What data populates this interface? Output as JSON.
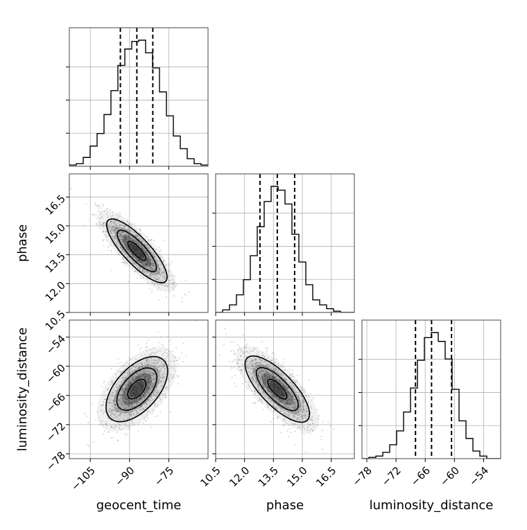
{
  "chart_data": {
    "type": "corner",
    "parameters": [
      {
        "name": "geocent_time",
        "axis_label": "geocent_time",
        "range": [
          -113,
          -60
        ],
        "ticks": [
          -105,
          -90,
          -75
        ],
        "tick_labels": [
          "−105",
          "−90",
          "−75"
        ],
        "quantiles": [
          -93.5,
          -87.2,
          -81.1
        ],
        "histogram": {
          "bins": [
            -113.0,
            -110.35,
            -107.7,
            -105.05,
            -102.4,
            -99.75,
            -97.1,
            -94.45,
            -91.8,
            -89.15,
            -86.5,
            -83.85,
            -81.2,
            -78.55,
            -75.9,
            -73.25,
            -70.6,
            -67.95,
            -65.3,
            -62.65,
            -60.0
          ],
          "heights": [
            0.01,
            0.02,
            0.07,
            0.16,
            0.26,
            0.41,
            0.6,
            0.8,
            0.93,
            0.99,
            1.0,
            0.9,
            0.78,
            0.59,
            0.4,
            0.24,
            0.14,
            0.06,
            0.02,
            0.01
          ]
        }
      },
      {
        "name": "phase",
        "axis_label": "phase",
        "range": [
          10.5,
          17.7
        ],
        "ticks": [
          10.5,
          12.0,
          13.5,
          15.0,
          16.5
        ],
        "tick_labels": [
          "10.5",
          "12.0",
          "13.5",
          "15.0",
          "16.5"
        ],
        "quantiles": [
          12.8,
          13.7,
          14.6
        ],
        "histogram": {
          "bins": [
            10.5,
            10.86,
            11.22,
            11.58,
            11.94,
            12.3,
            12.66,
            13.02,
            13.38,
            13.74,
            14.1,
            14.46,
            14.82,
            15.18,
            15.54,
            15.9,
            16.26,
            16.62,
            16.98,
            17.34,
            17.7
          ],
          "heights": [
            0.0,
            0.02,
            0.06,
            0.14,
            0.26,
            0.45,
            0.68,
            0.88,
            1.0,
            0.97,
            0.86,
            0.62,
            0.4,
            0.22,
            0.1,
            0.06,
            0.03,
            0.01,
            0.0,
            0.0
          ]
        }
      },
      {
        "name": "luminosity_distance",
        "axis_label": "luminosity_distance",
        "range": [
          -79,
          -50.5
        ],
        "ticks": [
          -78,
          -72,
          -66,
          -60,
          -54
        ],
        "tick_labels": [
          "−78",
          "−72",
          "−66",
          "−60",
          "−54"
        ],
        "quantiles": [
          -68.0,
          -64.7,
          -60.6
        ],
        "histogram": {
          "bins": [
            -79.0,
            -77.575,
            -76.15,
            -74.725,
            -73.3,
            -71.875,
            -70.45,
            -69.025,
            -67.6,
            -66.175,
            -64.75,
            -63.325,
            -61.9,
            -60.475,
            -59.05,
            -57.625,
            -56.2,
            -54.775,
            -53.35,
            -51.925,
            -50.5
          ],
          "heights": [
            0.0,
            0.01,
            0.02,
            0.05,
            0.11,
            0.22,
            0.37,
            0.56,
            0.78,
            0.96,
            1.0,
            0.93,
            0.79,
            0.55,
            0.3,
            0.16,
            0.06,
            0.02,
            0.0,
            0.0
          ]
        }
      }
    ],
    "correlations": [
      {
        "x": "geocent_time",
        "y": "phase",
        "rho": -0.82
      },
      {
        "x": "geocent_time",
        "y": "luminosity_distance",
        "rho": 0.55
      },
      {
        "x": "phase",
        "y": "luminosity_distance",
        "rho": -0.75
      }
    ],
    "grid": true,
    "colors": {
      "line": "#000000",
      "points": "#8a8a8a",
      "grid": "#b0b0b0"
    }
  }
}
